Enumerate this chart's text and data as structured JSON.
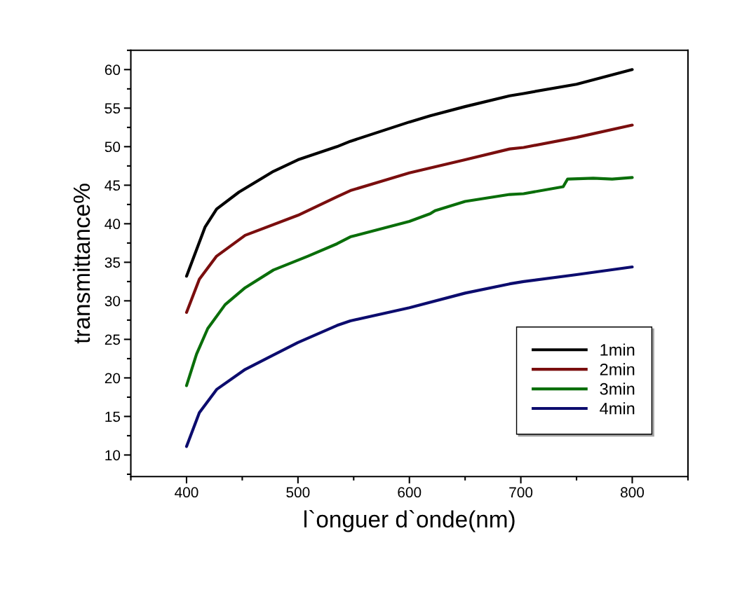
{
  "chart_data": {
    "type": "line",
    "xlabel": "l`onguer d`onde(nm)",
    "ylabel": "transmittance%",
    "xlim": [
      350,
      850
    ],
    "xticks": [
      400,
      500,
      600,
      700,
      800
    ],
    "ylim": [
      7.2,
      62.5
    ],
    "yticks": [
      10,
      15,
      20,
      25,
      30,
      35,
      40,
      45,
      50,
      55,
      60
    ],
    "grid": false,
    "legend": "bottom right",
    "line_style": "solid",
    "marker": "none",
    "series": [
      {
        "name": "1min",
        "color": "#000000",
        "x": [
          400,
          416.7,
          427,
          447,
          478,
          500,
          535,
          547,
          600,
          618.7,
          650,
          690,
          702.5,
          750,
          800
        ],
        "values": [
          33.2,
          39.6,
          41.9,
          44.1,
          46.8,
          48.3,
          50.0,
          50.7,
          53.2,
          54.0,
          55.2,
          56.6,
          56.9,
          58.1,
          60.0
        ]
      },
      {
        "name": "2min",
        "color": "#7a0e0e",
        "x": [
          400,
          411.5,
          427,
          452.6,
          500,
          535,
          547,
          600,
          650,
          690,
          702.5,
          750,
          800
        ],
        "values": [
          28.5,
          32.8,
          35.8,
          38.5,
          41.1,
          43.5,
          44.3,
          46.6,
          48.3,
          49.7,
          49.9,
          51.2,
          52.8
        ]
      },
      {
        "name": "3min",
        "color": "#0a6e0a",
        "x": [
          400,
          409,
          419,
          434.6,
          452.6,
          478,
          509,
          535,
          547,
          600,
          618.7,
          623,
          650,
          690,
          702.5,
          738,
          742,
          765,
          782,
          800
        ],
        "values": [
          19.0,
          23.1,
          26.4,
          29.5,
          31.7,
          34.0,
          35.8,
          37.4,
          38.3,
          40.3,
          41.3,
          41.7,
          42.9,
          43.8,
          43.9,
          44.8,
          45.8,
          45.9,
          45.8,
          46.0
        ]
      },
      {
        "name": "4min",
        "color": "#0c0c6e",
        "x": [
          400,
          411.5,
          427,
          452.6,
          500,
          535,
          547,
          600,
          650,
          690,
          702.5,
          750,
          800
        ],
        "values": [
          11.1,
          15.5,
          18.5,
          21.1,
          24.6,
          26.8,
          27.4,
          29.1,
          31.0,
          32.2,
          32.5,
          33.4,
          34.4
        ]
      }
    ]
  }
}
